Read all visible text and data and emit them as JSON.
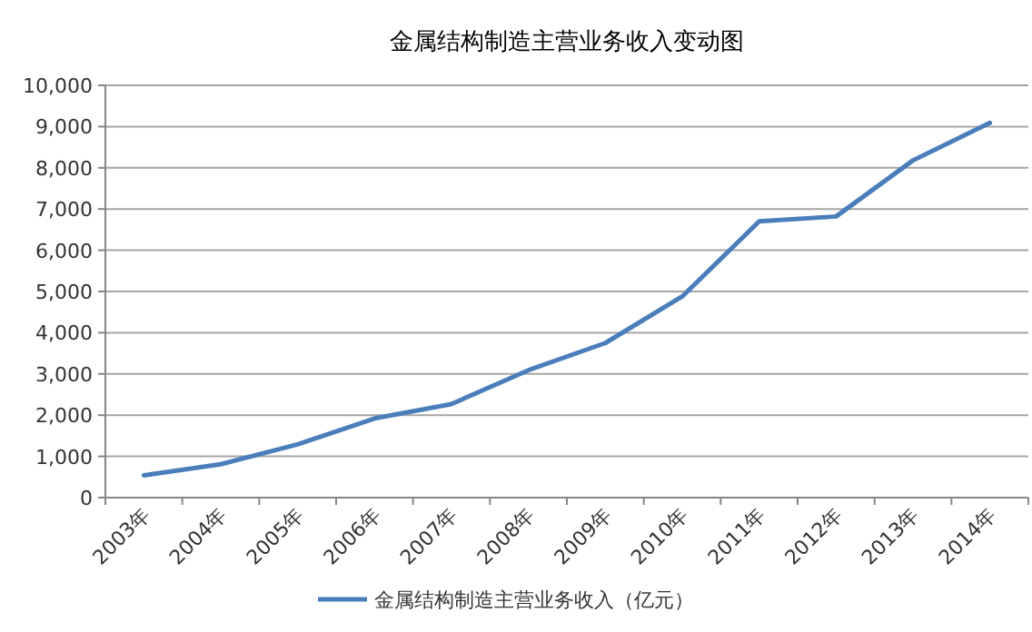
{
  "chart_data": {
    "type": "line",
    "title": "金属结构制造主营业务收入变动图",
    "categories": [
      "2003年",
      "2004年",
      "2005年",
      "2006年",
      "2007年",
      "2008年",
      "2009年",
      "2010年",
      "2011年",
      "2012年",
      "2013年",
      "2014年"
    ],
    "series": [
      {
        "name": "金属结构制造主营业务收入（亿元）",
        "color": "#4a7ebb",
        "values": [
          540,
          810,
          1290,
          1920,
          2270,
          3090,
          3750,
          4880,
          6700,
          6820,
          8180,
          9090
        ]
      }
    ],
    "ylim": [
      0,
      10000
    ],
    "yticks": [
      {
        "value": 0,
        "label": "0"
      },
      {
        "value": 1000,
        "label": "1,000"
      },
      {
        "value": 2000,
        "label": "2,000"
      },
      {
        "value": 3000,
        "label": "3,000"
      },
      {
        "value": 4000,
        "label": "4,000"
      },
      {
        "value": 5000,
        "label": "5,000"
      },
      {
        "value": 6000,
        "label": "6,000"
      },
      {
        "value": 7000,
        "label": "7,000"
      },
      {
        "value": 8000,
        "label": "8,000"
      },
      {
        "value": 9000,
        "label": "9,000"
      },
      {
        "value": 10000,
        "label": "10,000"
      }
    ],
    "grid": "y",
    "legend": "bottom"
  }
}
